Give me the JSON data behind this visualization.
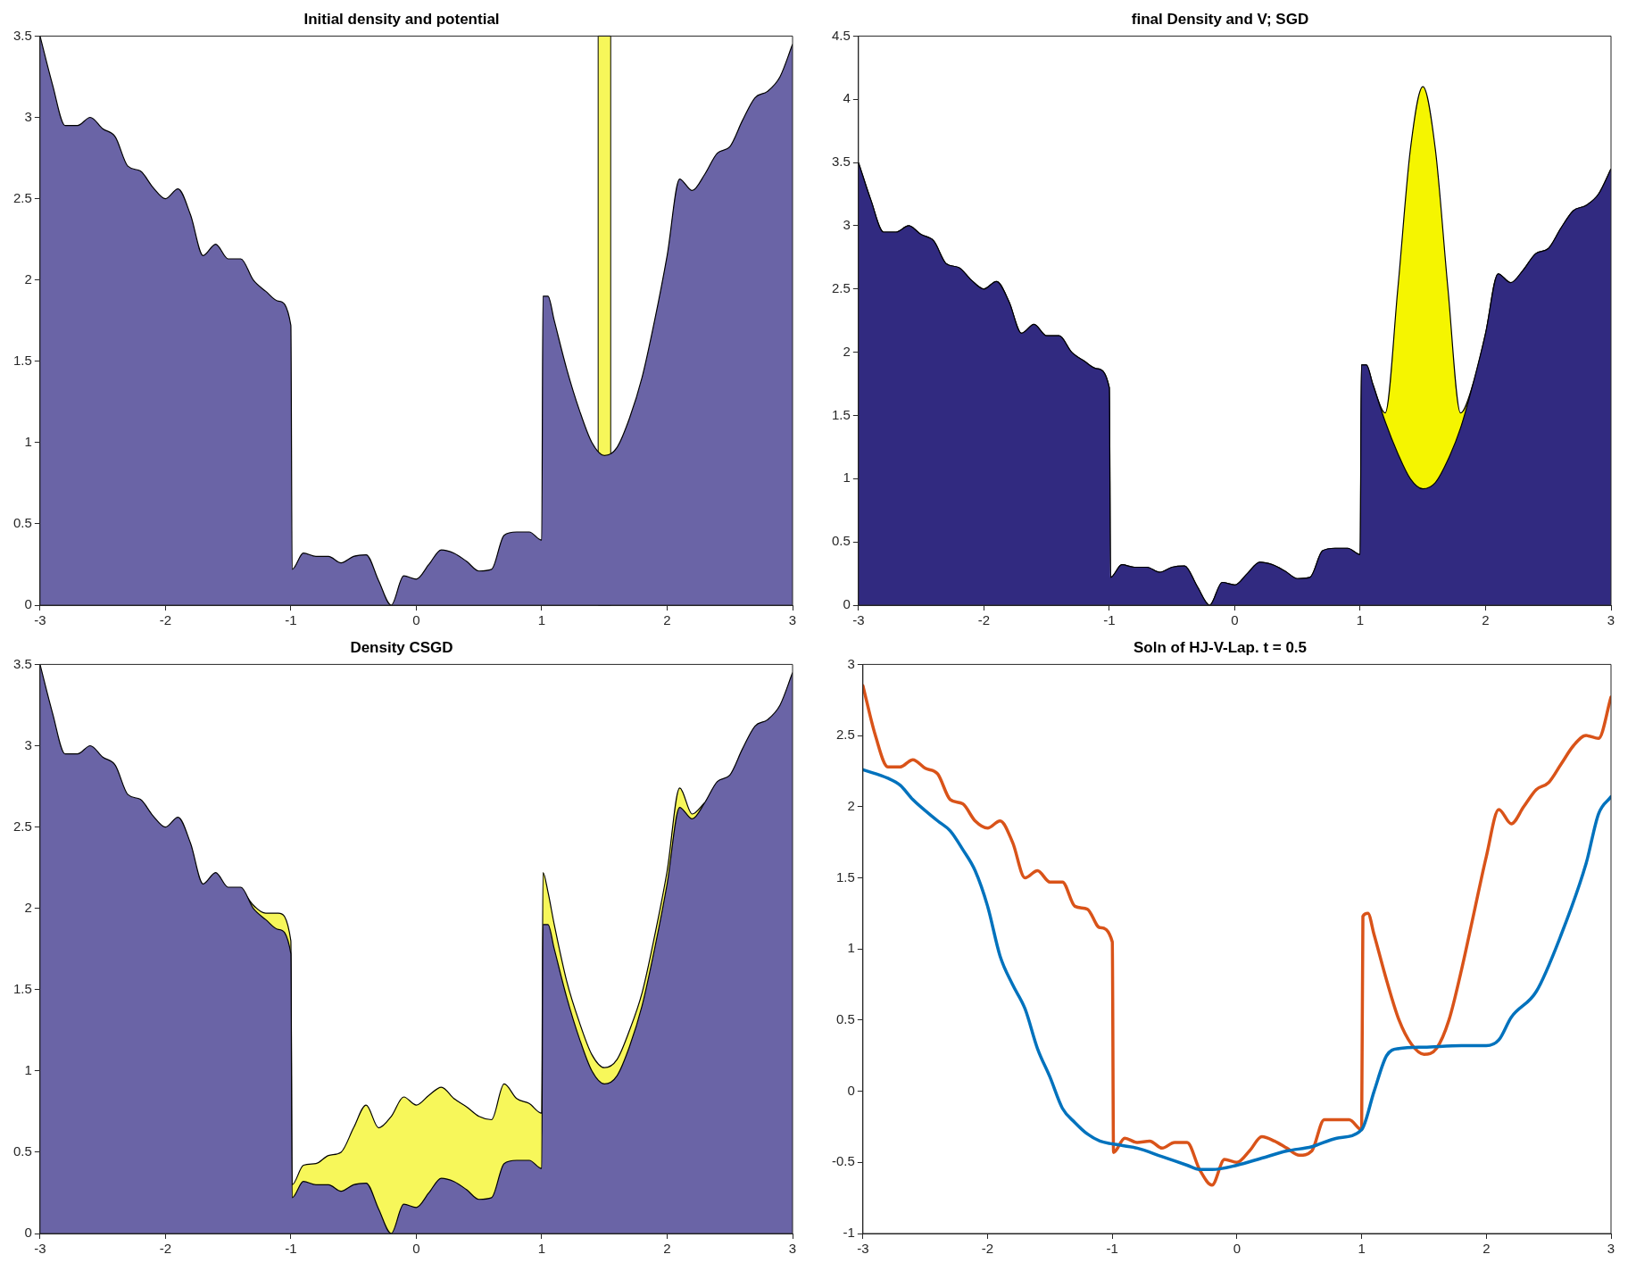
{
  "chart_data": [
    {
      "type": "area",
      "title": "Initial density and potential",
      "stacked": true,
      "x": [
        -3,
        -2.9,
        -2.8,
        -2.7,
        -2.6,
        -2.5,
        -2.4,
        -2.3,
        -2.2,
        -2.1,
        -2,
        -1.9,
        -1.8,
        -1.7,
        -1.6,
        -1.5,
        -1.4,
        -1.3,
        -1.2,
        -1.1,
        -1,
        -0.99,
        -0.9,
        -0.8,
        -0.7,
        -0.6,
        -0.5,
        -0.4,
        -0.3,
        -0.2,
        -0.1,
        0,
        0.1,
        0.2,
        0.3,
        0.4,
        0.5,
        0.6,
        0.7,
        0.8,
        0.9,
        1,
        1.01,
        1.05,
        1.1,
        1.2,
        1.3,
        1.4,
        1.5,
        1.6,
        1.7,
        1.8,
        1.9,
        2,
        2.1,
        2.2,
        2.3,
        2.4,
        2.5,
        2.6,
        2.7,
        2.8,
        2.9,
        3
      ],
      "series": [
        {
          "color": "#6a64a6",
          "values": [
            3.5,
            3.2,
            2.95,
            2.95,
            3.0,
            2.93,
            2.88,
            2.7,
            2.67,
            2.57,
            2.5,
            2.56,
            2.4,
            2.15,
            2.22,
            2.13,
            2.13,
            2.0,
            1.93,
            1.87,
            1.72,
            0.22,
            0.32,
            0.3,
            0.3,
            0.26,
            0.3,
            0.31,
            0.15,
            0.0,
            0.18,
            0.16,
            0.25,
            0.34,
            0.32,
            0.27,
            0.21,
            0.22,
            0.43,
            0.45,
            0.45,
            0.4,
            1.9,
            1.9,
            1.75,
            1.45,
            1.2,
            1.0,
            0.92,
            0.97,
            1.15,
            1.4,
            1.75,
            2.15,
            2.62,
            2.55,
            2.65,
            2.78,
            2.82,
            2.98,
            3.12,
            3.16,
            3.25,
            3.45
          ]
        }
      ],
      "bands": [
        {
          "axis": "x",
          "from": 1.45,
          "to": 1.55,
          "color": "#f7f75a"
        }
      ],
      "xlim": [
        -3,
        3
      ],
      "xticks": [
        -3,
        -2,
        -1,
        0,
        1,
        2,
        3
      ],
      "ylim": [
        0,
        3.5
      ],
      "yticks": [
        0,
        0.5,
        1,
        1.5,
        2,
        2.5,
        3,
        3.5
      ]
    },
    {
      "type": "area",
      "title": "final Density and V; SGD",
      "stacked": true,
      "x": [
        -3,
        -2.9,
        -2.8,
        -2.7,
        -2.6,
        -2.5,
        -2.4,
        -2.3,
        -2.2,
        -2.1,
        -2,
        -1.9,
        -1.8,
        -1.7,
        -1.6,
        -1.5,
        -1.4,
        -1.3,
        -1.2,
        -1.1,
        -1,
        -0.99,
        -0.9,
        -0.8,
        -0.7,
        -0.6,
        -0.5,
        -0.4,
        -0.3,
        -0.2,
        -0.1,
        0,
        0.1,
        0.2,
        0.3,
        0.4,
        0.5,
        0.6,
        0.7,
        0.8,
        0.9,
        1,
        1.01,
        1.05,
        1.1,
        1.2,
        1.3,
        1.4,
        1.5,
        1.6,
        1.7,
        1.8,
        1.9,
        2,
        2.1,
        2.2,
        2.3,
        2.4,
        2.5,
        2.6,
        2.7,
        2.8,
        2.9,
        3
      ],
      "series": [
        {
          "color": "#312a80",
          "values": [
            3.5,
            3.2,
            2.95,
            2.95,
            3.0,
            2.93,
            2.88,
            2.7,
            2.67,
            2.57,
            2.5,
            2.56,
            2.4,
            2.15,
            2.22,
            2.13,
            2.13,
            2.0,
            1.93,
            1.87,
            1.72,
            0.22,
            0.32,
            0.3,
            0.3,
            0.26,
            0.3,
            0.31,
            0.15,
            0.0,
            0.18,
            0.16,
            0.25,
            0.34,
            0.32,
            0.27,
            0.21,
            0.22,
            0.43,
            0.45,
            0.45,
            0.4,
            1.9,
            1.9,
            1.75,
            1.45,
            1.2,
            1.0,
            0.92,
            0.97,
            1.15,
            1.4,
            1.75,
            2.15,
            2.62,
            2.55,
            2.65,
            2.78,
            2.82,
            2.98,
            3.12,
            3.16,
            3.25,
            3.45
          ]
        },
        {
          "color": "#f5f500",
          "values": [
            0,
            0,
            0,
            0,
            0,
            0,
            0,
            0,
            0,
            0,
            0,
            0,
            0,
            0,
            0,
            0,
            0,
            0,
            0,
            0,
            0,
            0,
            0,
            0,
            0,
            0,
            0,
            0,
            0,
            0,
            0,
            0,
            0,
            0,
            0,
            0,
            0,
            0,
            0,
            0,
            0,
            0,
            0,
            0,
            0,
            0.07,
            1.3,
            2.6,
            3.18,
            2.63,
            1.35,
            0.12,
            0,
            0,
            0,
            0,
            0,
            0,
            0,
            0,
            0,
            0,
            0,
            0
          ]
        }
      ],
      "xlim": [
        -3,
        3
      ],
      "xticks": [
        -3,
        -2,
        -1,
        0,
        1,
        2,
        3
      ],
      "ylim": [
        0,
        4.5
      ],
      "yticks": [
        0,
        0.5,
        1,
        1.5,
        2,
        2.5,
        3,
        3.5,
        4,
        4.5
      ]
    },
    {
      "type": "area",
      "title": "Density CSGD",
      "stacked": true,
      "x": [
        -3,
        -2.9,
        -2.8,
        -2.7,
        -2.6,
        -2.5,
        -2.4,
        -2.3,
        -2.2,
        -2.1,
        -2,
        -1.9,
        -1.8,
        -1.7,
        -1.6,
        -1.5,
        -1.4,
        -1.3,
        -1.2,
        -1.1,
        -1,
        -0.99,
        -0.9,
        -0.8,
        -0.7,
        -0.6,
        -0.5,
        -0.4,
        -0.3,
        -0.2,
        -0.1,
        0,
        0.1,
        0.2,
        0.3,
        0.4,
        0.5,
        0.6,
        0.7,
        0.8,
        0.9,
        1,
        1.01,
        1.05,
        1.1,
        1.2,
        1.3,
        1.4,
        1.5,
        1.6,
        1.7,
        1.8,
        1.9,
        2,
        2.1,
        2.2,
        2.3,
        2.4,
        2.5,
        2.6,
        2.7,
        2.8,
        2.9,
        3
      ],
      "series": [
        {
          "color": "#6a64a6",
          "values": [
            3.5,
            3.2,
            2.95,
            2.95,
            3.0,
            2.93,
            2.88,
            2.7,
            2.67,
            2.57,
            2.5,
            2.56,
            2.4,
            2.15,
            2.22,
            2.13,
            2.13,
            2.0,
            1.93,
            1.87,
            1.72,
            0.22,
            0.32,
            0.3,
            0.3,
            0.26,
            0.3,
            0.31,
            0.15,
            0.0,
            0.18,
            0.16,
            0.25,
            0.34,
            0.32,
            0.27,
            0.21,
            0.22,
            0.43,
            0.45,
            0.45,
            0.4,
            1.9,
            1.9,
            1.75,
            1.45,
            1.2,
            1.0,
            0.92,
            0.97,
            1.15,
            1.4,
            1.75,
            2.15,
            2.62,
            2.55,
            2.65,
            2.78,
            2.82,
            2.98,
            3.12,
            3.16,
            3.25,
            3.45
          ]
        },
        {
          "color": "#f7f75a",
          "values": [
            null,
            null,
            null,
            null,
            null,
            null,
            null,
            null,
            null,
            null,
            null,
            null,
            null,
            null,
            null,
            null,
            0,
            0.02,
            0.04,
            0.1,
            0.08,
            0.08,
            0.1,
            0.13,
            0.18,
            0.24,
            0.35,
            0.48,
            0.5,
            0.72,
            0.66,
            0.63,
            0.6,
            0.56,
            0.51,
            0.51,
            0.51,
            0.48,
            0.49,
            0.38,
            0.35,
            0.34,
            0.32,
            0.2,
            0.15,
            0.1,
            0.1,
            0.1,
            0.1,
            0.1,
            0.1,
            0.08,
            0.08,
            0.08,
            0.12,
            0.03,
            0,
            null,
            null,
            null,
            null,
            null,
            null,
            null
          ]
        }
      ],
      "xlim": [
        -3,
        3
      ],
      "xticks": [
        -3,
        -2,
        -1,
        0,
        1,
        2,
        3
      ],
      "ylim": [
        0,
        3.5
      ],
      "yticks": [
        0,
        0.5,
        1,
        1.5,
        2,
        2.5,
        3,
        3.5
      ]
    },
    {
      "type": "line",
      "title": "Soln of HJ-V-Lap. t = 0.5",
      "series": [
        {
          "color": "#0072bd",
          "x": [
            -3,
            -2.8,
            -2.7,
            -2.6,
            -2.4,
            -2.3,
            -2.2,
            -2.1,
            -2,
            -1.9,
            -1.8,
            -1.7,
            -1.6,
            -1.5,
            -1.4,
            -1.3,
            -1.2,
            -1.1,
            -1,
            -0.8,
            -0.6,
            -0.4,
            -0.3,
            -0.2,
            0,
            0.2,
            0.4,
            0.6,
            0.8,
            1,
            1.1,
            1.2,
            1.3,
            1.5,
            1.8,
            2,
            2.1,
            2.2,
            2.4,
            2.6,
            2.8,
            2.9,
            3
          ],
          "values": [
            2.26,
            2.2,
            2.15,
            2.05,
            1.9,
            1.83,
            1.7,
            1.55,
            1.3,
            0.95,
            0.75,
            0.58,
            0.3,
            0.1,
            -0.12,
            -0.22,
            -0.3,
            -0.35,
            -0.37,
            -0.4,
            -0.46,
            -0.52,
            -0.55,
            -0.55,
            -0.52,
            -0.47,
            -0.42,
            -0.39,
            -0.33,
            -0.27,
            0.0,
            0.25,
            0.3,
            0.31,
            0.32,
            0.32,
            0.36,
            0.52,
            0.7,
            1.1,
            1.6,
            1.95,
            2.07
          ]
        },
        {
          "color": "#d95319",
          "x": [
            -3,
            -2.9,
            -2.8,
            -2.7,
            -2.6,
            -2.5,
            -2.4,
            -2.3,
            -2.2,
            -2.1,
            -2,
            -1.9,
            -1.8,
            -1.7,
            -1.6,
            -1.5,
            -1.4,
            -1.3,
            -1.2,
            -1.1,
            -1,
            -0.99,
            -0.9,
            -0.8,
            -0.7,
            -0.6,
            -0.5,
            -0.4,
            -0.3,
            -0.2,
            -0.1,
            0,
            0.1,
            0.2,
            0.3,
            0.4,
            0.5,
            0.6,
            0.7,
            0.8,
            0.9,
            1,
            1.01,
            1.05,
            1.1,
            1.2,
            1.3,
            1.4,
            1.5,
            1.6,
            1.7,
            1.8,
            1.9,
            2,
            2.1,
            2.2,
            2.3,
            2.4,
            2.5,
            2.6,
            2.7,
            2.8,
            2.9,
            3
          ],
          "values": [
            2.85,
            2.5,
            2.28,
            2.28,
            2.33,
            2.27,
            2.23,
            2.05,
            2.02,
            1.9,
            1.85,
            1.9,
            1.75,
            1.5,
            1.55,
            1.47,
            1.47,
            1.3,
            1.28,
            1.15,
            1.05,
            -0.43,
            -0.33,
            -0.36,
            -0.35,
            -0.4,
            -0.36,
            -0.36,
            -0.55,
            -0.66,
            -0.48,
            -0.5,
            -0.42,
            -0.32,
            -0.35,
            -0.4,
            -0.45,
            -0.42,
            -0.2,
            -0.2,
            -0.2,
            -0.27,
            1.23,
            1.25,
            1.1,
            0.78,
            0.5,
            0.33,
            0.26,
            0.3,
            0.5,
            0.85,
            1.25,
            1.65,
            1.98,
            1.88,
            2.0,
            2.12,
            2.17,
            2.3,
            2.43,
            2.5,
            2.48,
            2.77
          ]
        }
      ],
      "xlim": [
        -3,
        3
      ],
      "xticks": [
        -3,
        -2,
        -1,
        0,
        1,
        2,
        3
      ],
      "ylim": [
        -1,
        3
      ],
      "yticks": [
        -1,
        -0.5,
        0,
        0.5,
        1,
        1.5,
        2,
        2.5,
        3
      ]
    }
  ]
}
